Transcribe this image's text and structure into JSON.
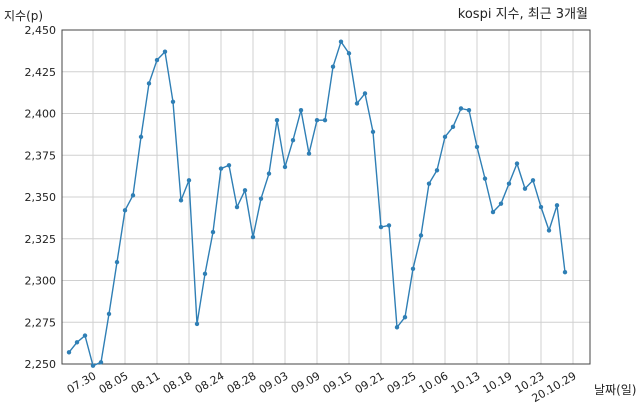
{
  "chart_data": {
    "type": "line",
    "title": "kospi 지수, 최근 3개월",
    "xlabel": "날짜(일)",
    "ylabel": "지수(p)",
    "ylim": [
      2250,
      2450
    ],
    "yticks": [
      "2,250",
      "2,275",
      "2,300",
      "2,325",
      "2,350",
      "2,375",
      "2,400",
      "2,425",
      "2,450"
    ],
    "ytick_values": [
      2250,
      2275,
      2300,
      2325,
      2350,
      2375,
      2400,
      2425,
      2450
    ],
    "xtick_labels": [
      "07.30",
      "08.05",
      "08.11",
      "08.18",
      "08.24",
      "08.28",
      "09.03",
      "09.09",
      "09.15",
      "09.21",
      "09.25",
      "10.06",
      "10.13",
      "10.19",
      "10.23",
      "20.10.29"
    ],
    "xtick_index": [
      3,
      7,
      11,
      15,
      19,
      23,
      27,
      31,
      35,
      39,
      43,
      47,
      51,
      55,
      59,
      63
    ],
    "grid": true,
    "color": "#2f7fb5",
    "series": [
      {
        "name": "",
        "values": [
          2257,
          2263,
          2267,
          2249,
          2251,
          2280,
          2311,
          2342,
          2351,
          2386,
          2418,
          2432,
          2437,
          2407,
          2348,
          2360,
          2274,
          2304,
          2329,
          2367,
          2369,
          2344,
          2354,
          2326,
          2349,
          2364,
          2396,
          2368,
          2384,
          2402,
          2376,
          2396,
          2396,
          2428,
          2443,
          2436,
          2406,
          2412,
          2389,
          2332,
          2333,
          2272,
          2278,
          2307,
          2327,
          2358,
          2366,
          2386,
          2392,
          2403,
          2402,
          2380,
          2361,
          2341,
          2346,
          2358,
          2370,
          2355,
          2360,
          2344,
          2330,
          2345,
          2305
        ]
      }
    ]
  }
}
